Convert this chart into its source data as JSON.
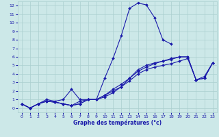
{
  "xlabel": "Graphe des températures (°c)",
  "background_color": "#cce8e8",
  "grid_color": "#aacfcf",
  "line_color": "#1a1aaa",
  "xlim": [
    -0.5,
    23.5
  ],
  "ylim": [
    -0.5,
    12.5
  ],
  "xticks": [
    0,
    1,
    2,
    3,
    4,
    5,
    6,
    7,
    8,
    9,
    10,
    11,
    12,
    13,
    14,
    15,
    16,
    17,
    18,
    19,
    20,
    21,
    22,
    23
  ],
  "yticks": [
    0,
    1,
    2,
    3,
    4,
    5,
    6,
    7,
    8,
    9,
    10,
    11,
    12
  ],
  "series": [
    {
      "x": [
        0,
        1,
        2,
        3,
        4,
        5,
        6,
        7,
        8,
        9,
        10,
        11,
        12,
        13,
        14,
        15,
        16,
        17,
        18,
        19,
        20,
        21,
        22,
        23
      ],
      "y": [
        0.5,
        0.0,
        0.5,
        0.8,
        0.7,
        0.5,
        0.3,
        0.5,
        1.0,
        1.0,
        3.5,
        5.8,
        8.5,
        11.7,
        12.3,
        12.1,
        10.6,
        8.0,
        7.5,
        null,
        null,
        null,
        null,
        null
      ]
    },
    {
      "x": [
        0,
        1,
        2,
        3,
        4,
        5,
        6,
        7,
        8,
        9,
        10,
        11,
        12,
        13,
        14,
        15,
        16,
        17,
        18,
        19,
        20,
        21,
        22,
        23
      ],
      "y": [
        0.5,
        0.0,
        0.5,
        0.8,
        0.7,
        0.5,
        0.3,
        0.5,
        1.0,
        1.0,
        1.5,
        2.2,
        2.8,
        3.5,
        4.3,
        4.8,
        5.2,
        5.5,
        5.7,
        6.0,
        6.0,
        3.3,
        3.5,
        5.3
      ]
    },
    {
      "x": [
        0,
        1,
        2,
        3,
        4,
        5,
        6,
        7,
        8,
        9,
        10,
        11,
        12,
        13,
        14,
        15,
        16,
        17,
        18,
        19,
        20,
        21,
        22,
        23
      ],
      "y": [
        0.5,
        0.0,
        0.5,
        1.0,
        0.8,
        1.0,
        2.2,
        1.0,
        1.0,
        1.0,
        1.5,
        2.0,
        2.5,
        3.5,
        4.5,
        5.0,
        5.3,
        5.5,
        5.8,
        6.0,
        6.0,
        3.3,
        3.5,
        5.3
      ]
    },
    {
      "x": [
        0,
        1,
        2,
        3,
        4,
        5,
        6,
        7,
        8,
        9,
        10,
        11,
        12,
        13,
        14,
        15,
        16,
        17,
        18,
        19,
        20,
        21,
        22,
        23
      ],
      "y": [
        0.5,
        0.0,
        0.5,
        0.8,
        0.7,
        0.5,
        0.3,
        0.8,
        1.0,
        1.0,
        1.3,
        1.8,
        2.5,
        3.2,
        4.0,
        4.5,
        4.8,
        5.0,
        5.2,
        5.5,
        5.8,
        3.3,
        3.7,
        5.3
      ]
    }
  ]
}
